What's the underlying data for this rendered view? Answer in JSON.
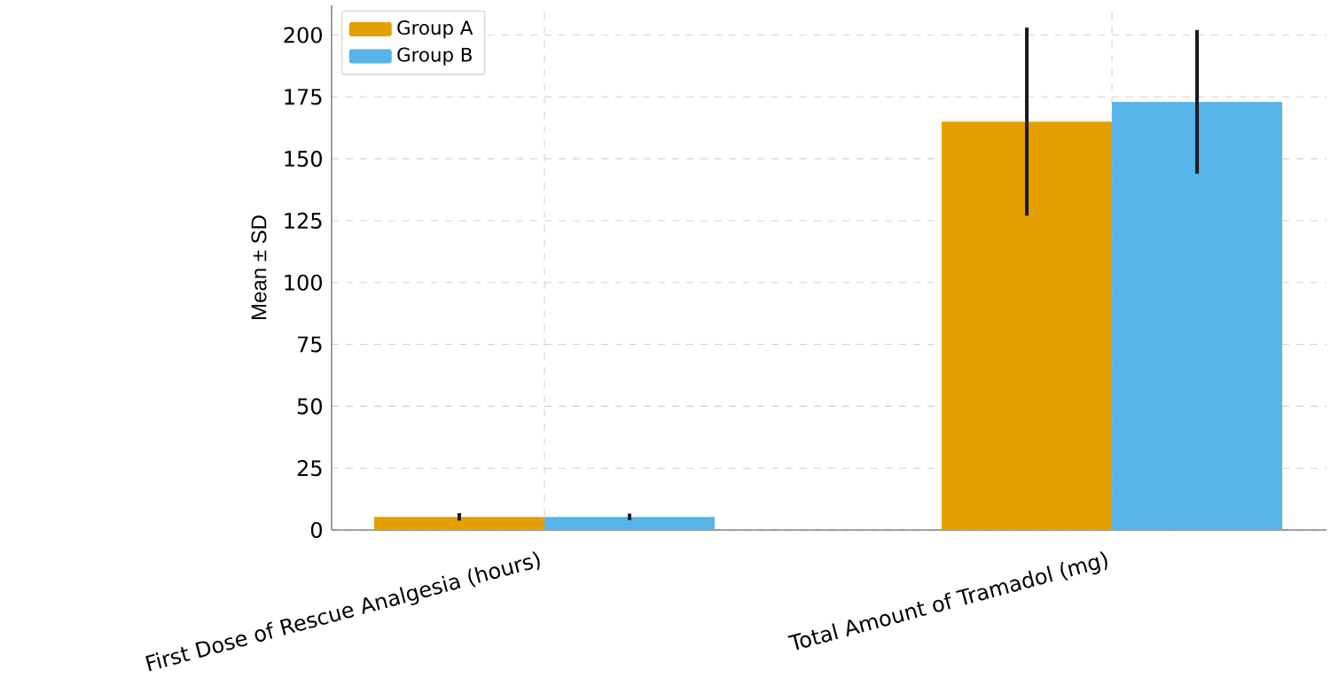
{
  "chart_data": {
    "type": "bar",
    "ylabel": "Mean ± SD",
    "categories": [
      "First Dose of Rescue Analgesia (hours)",
      "Total Amount of Tramadol (mg)"
    ],
    "series": [
      {
        "name": "Group A",
        "color": "#e69f00",
        "values": [
          5.3,
          165
        ],
        "errors": [
          1.5,
          38
        ]
      },
      {
        "name": "Group B",
        "color": "#56b4e9",
        "values": [
          5.3,
          173
        ],
        "errors": [
          1.3,
          29
        ]
      }
    ],
    "ylim": [
      0,
      212
    ],
    "yticks": [
      0,
      25,
      50,
      75,
      100,
      125,
      150,
      175,
      200
    ],
    "grid": true,
    "legend": "top left"
  }
}
